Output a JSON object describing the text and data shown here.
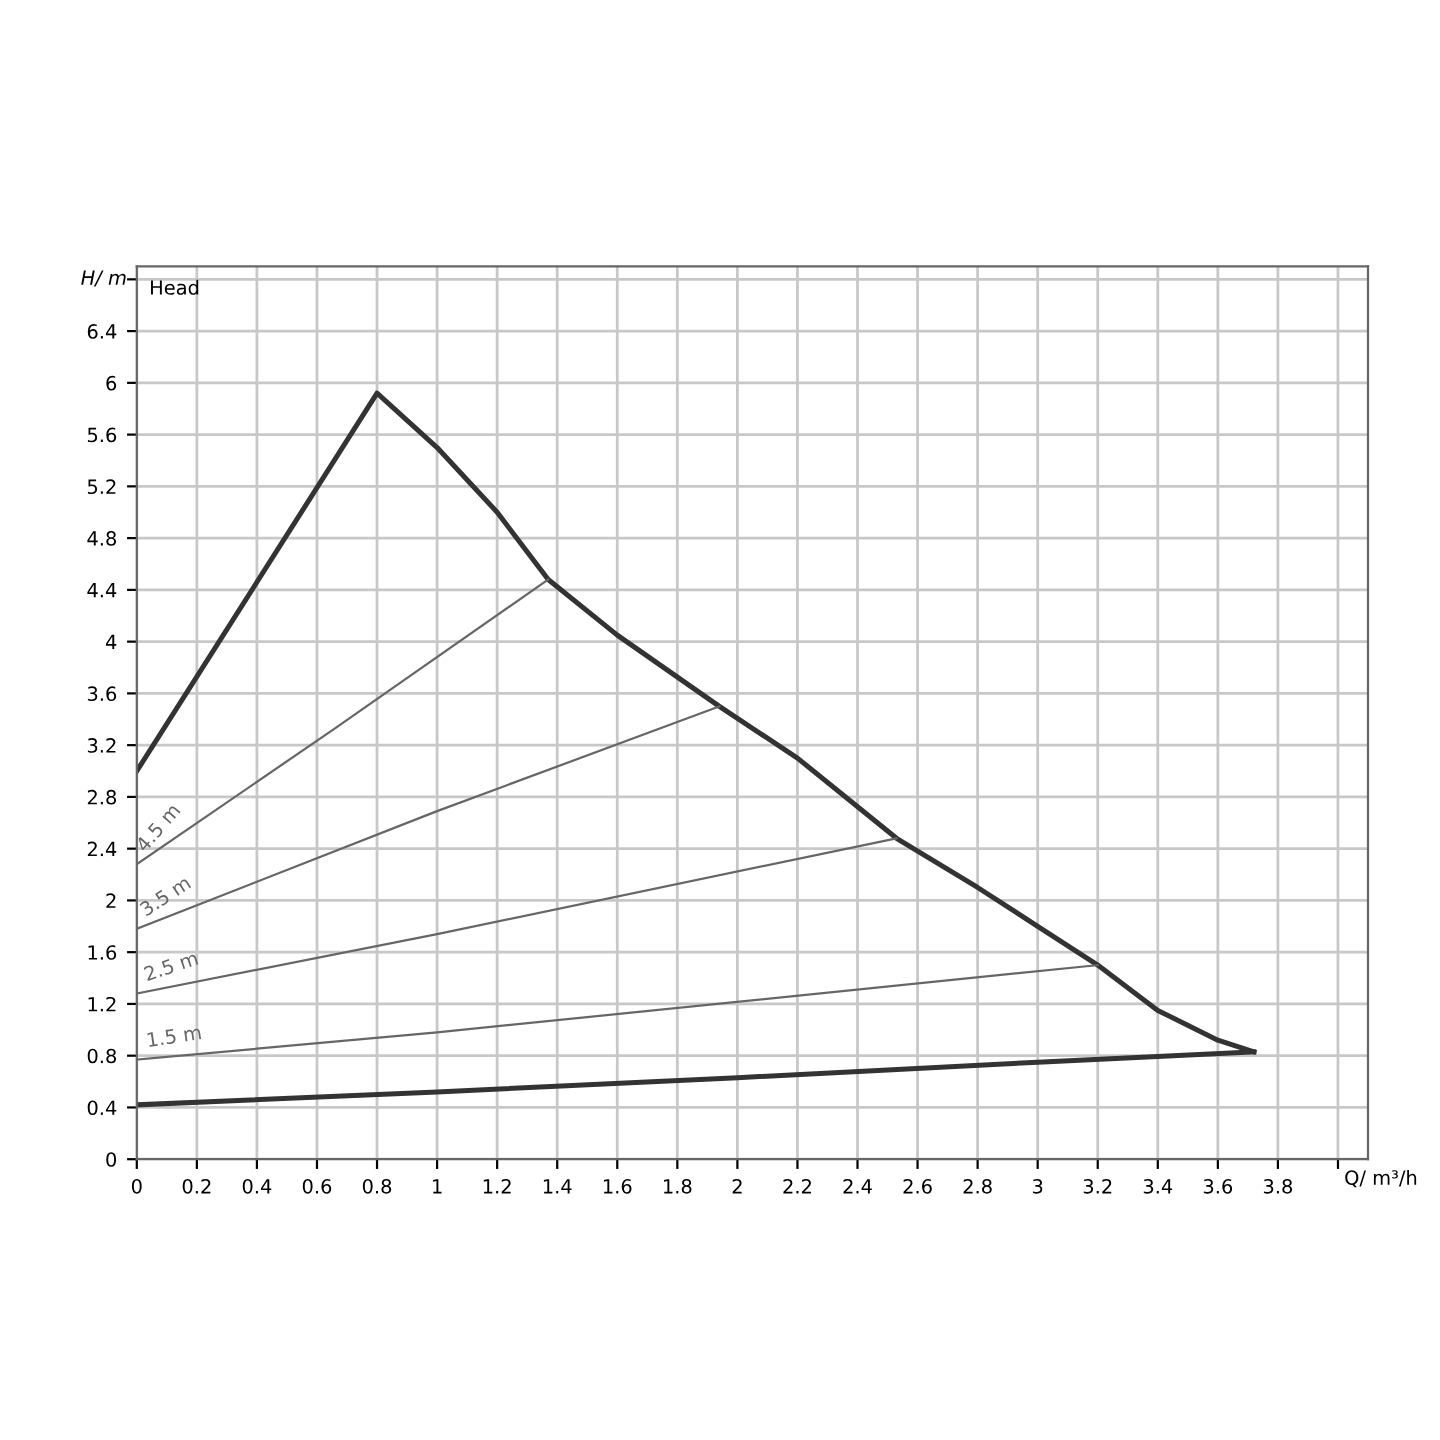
{
  "chart_data": {
    "type": "line",
    "xlabel": "Q/ m³/h",
    "ylabel": "H/ m",
    "annotations": [
      "Head"
    ],
    "xlim": [
      0,
      4.1
    ],
    "ylim": [
      0,
      6.9
    ],
    "xticks": [
      0,
      0.2,
      0.4,
      0.6,
      0.8,
      1,
      1.2,
      1.4,
      1.6,
      1.8,
      2,
      2.2,
      2.4,
      2.6,
      2.8,
      3,
      3.2,
      3.4,
      3.6,
      3.8,
      {
        "value": 4,
        "label": null
      }
    ],
    "yticks": [
      0,
      0.4,
      0.8,
      1.2,
      1.6,
      2,
      2.4,
      2.8,
      3.2,
      3.6,
      4,
      4.4,
      4.8,
      5.2,
      5.6,
      6,
      6.4,
      {
        "value": 6.8,
        "label": null
      }
    ],
    "grid": true,
    "legend": false,
    "marker": "none",
    "line_style": "solid",
    "series": [
      {
        "color": "#333333",
        "x": [
          0,
          0.8,
          1.0,
          1.2,
          1.37,
          1.6,
          1.94,
          2.2,
          2.53,
          2.8,
          3.0,
          3.2,
          3.4,
          3.6,
          3.72
        ],
        "values": [
          3.0,
          5.92,
          5.5,
          5.0,
          4.48,
          4.05,
          3.5,
          3.1,
          2.48,
          2.1,
          1.8,
          1.5,
          1.15,
          0.92,
          0.83
        ]
      },
      {
        "color": "#333333",
        "x": [
          0,
          1,
          2,
          3,
          3.72
        ],
        "values": [
          0.42,
          0.52,
          0.63,
          0.75,
          0.83
        ]
      },
      {
        "name": "4.5 m",
        "color": "#666666",
        "x": [
          0,
          0.66,
          1.37
        ],
        "values": [
          2.28,
          3.33,
          4.48
        ]
      },
      {
        "name": "3.5 m",
        "color": "#666666",
        "x": [
          0,
          1,
          1.94
        ],
        "values": [
          1.78,
          2.69,
          3.5
        ]
      },
      {
        "name": "2.5 m",
        "color": "#666666",
        "x": [
          0,
          1,
          2.53
        ],
        "values": [
          1.28,
          1.74,
          2.48
        ]
      },
      {
        "name": "1.5 m",
        "color": "#666666",
        "x": [
          0,
          1,
          3.2
        ],
        "values": [
          0.77,
          0.98,
          1.5
        ]
      }
    ]
  }
}
